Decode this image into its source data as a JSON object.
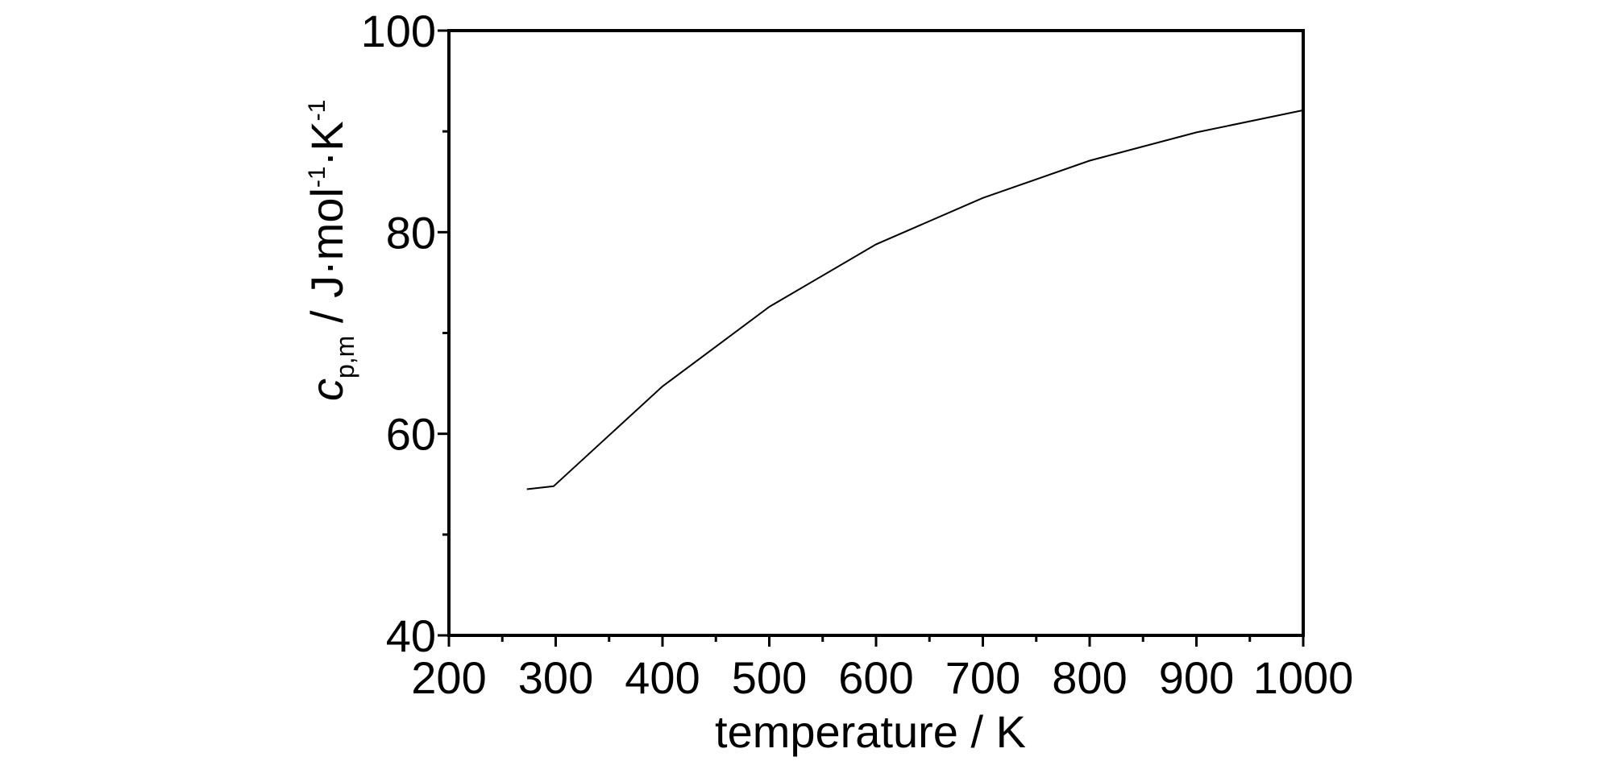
{
  "chart_data": {
    "type": "line",
    "xlabel": "temperature / K",
    "ylabel": {
      "symbol": "c",
      "subscript": "p,m",
      "unit_prefix": " / J·mol",
      "exp1": "-1",
      "unit_mid": "·K",
      "exp2": "-1"
    },
    "xlim": [
      200,
      1000
    ],
    "ylim": [
      40,
      100
    ],
    "xticks": [
      200,
      300,
      400,
      500,
      600,
      700,
      800,
      900,
      1000
    ],
    "xtick_labels": [
      "200",
      "300",
      "400",
      "500",
      "600",
      "700",
      "800",
      "900",
      "1000"
    ],
    "xminor": [
      250,
      350,
      450,
      550,
      650,
      750,
      850,
      950
    ],
    "yticks": [
      40,
      60,
      80,
      100
    ],
    "ytick_labels": [
      "40",
      "60",
      "80",
      "100"
    ],
    "yminor": [
      50,
      70,
      90
    ],
    "grid": false,
    "series": [
      {
        "x": [
          273,
          298,
          400,
          500,
          600,
          700,
          800,
          900,
          1000
        ],
        "y": [
          54.5,
          54.8,
          64.7,
          72.6,
          78.8,
          83.4,
          87.1,
          89.9,
          92.1
        ]
      }
    ],
    "colors": {
      "line": "#000000",
      "frame": "#000000"
    }
  }
}
